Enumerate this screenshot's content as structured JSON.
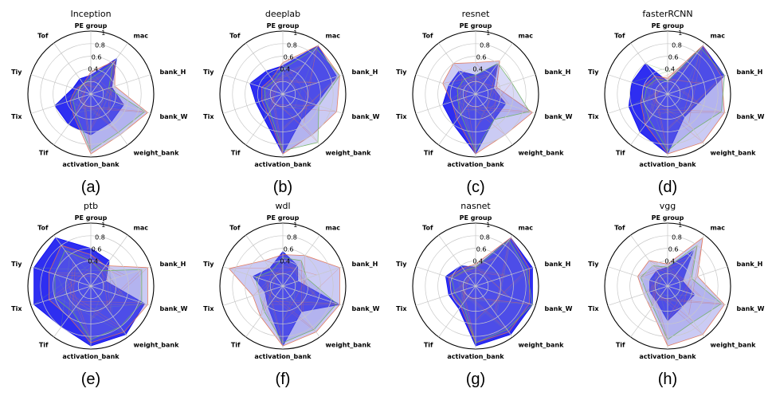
{
  "figure": {
    "axes": [
      "PE group",
      "mac",
      "bank_H",
      "bank_W",
      "weight_bank",
      "activation_bank",
      "Tif",
      "Tix",
      "Tiy",
      "Tof"
    ],
    "radial_ticks": [
      "0.4",
      "0.6",
      "0.8",
      "1"
    ],
    "colors": {
      "primary_fill": "#0000ee",
      "overlay_fill": "#6a6ae0",
      "grid": "#c8c8c8",
      "trace_red": "#e07050",
      "trace_green": "#70b060"
    }
  },
  "chart_data": [
    {
      "type": "radar",
      "title": "Inception",
      "caption": "(a)",
      "rlim": [
        0,
        1
      ],
      "series": [
        {
          "values": [
            0.3,
            0.7,
            0.35,
            0.55,
            0.55,
            0.65,
            0.6,
            0.6,
            0.3,
            0.3
          ]
        },
        {
          "values": [
            0.35,
            0.65,
            0.4,
            0.95,
            0.8,
            0.95,
            0.45,
            0.35,
            0.25,
            0.2
          ]
        },
        {
          "values": [
            0.25,
            0.6,
            0.3,
            0.9,
            0.75,
            0.9,
            0.4,
            0.3,
            0.2,
            0.2
          ]
        }
      ]
    },
    {
      "type": "radar",
      "title": "deeplab",
      "caption": "(b)",
      "rlim": [
        0,
        1
      ],
      "series": [
        {
          "values": [
            0.45,
            0.95,
            0.9,
            0.55,
            0.5,
            0.95,
            0.5,
            0.45,
            0.55,
            0.45
          ]
        },
        {
          "values": [
            0.5,
            0.95,
            0.95,
            0.9,
            0.8,
            0.95,
            0.4,
            0.35,
            0.35,
            0.3
          ]
        },
        {
          "values": [
            0.4,
            0.9,
            0.95,
            0.6,
            0.95,
            0.9,
            0.35,
            0.3,
            0.3,
            0.25
          ]
        }
      ]
    },
    {
      "type": "radar",
      "title": "resnet",
      "caption": "(c)",
      "rlim": [
        0,
        1
      ],
      "series": [
        {
          "values": [
            0.3,
            0.6,
            0.3,
            0.5,
            0.5,
            0.95,
            0.6,
            0.55,
            0.45,
            0.45
          ]
        },
        {
          "values": [
            0.5,
            0.65,
            0.35,
            0.95,
            0.8,
            0.95,
            0.5,
            0.4,
            0.55,
            0.6
          ]
        },
        {
          "values": [
            0.3,
            0.6,
            0.6,
            0.9,
            0.5,
            0.9,
            0.4,
            0.3,
            0.3,
            0.3
          ]
        }
      ]
    },
    {
      "type": "radar",
      "title": "fasterRCNN",
      "caption": "(d)",
      "rlim": [
        0,
        1
      ],
      "series": [
        {
          "values": [
            0.2,
            0.95,
            0.95,
            0.5,
            0.45,
            0.95,
            0.75,
            0.65,
            0.6,
            0.6
          ]
        },
        {
          "values": [
            0.25,
            0.95,
            0.9,
            0.95,
            0.95,
            0.95,
            0.6,
            0.45,
            0.4,
            0.35
          ]
        },
        {
          "values": [
            0.2,
            0.9,
            0.95,
            0.9,
            0.7,
            0.9,
            0.5,
            0.4,
            0.35,
            0.3
          ]
        }
      ]
    },
    {
      "type": "radar",
      "title": "ptb",
      "caption": "(e)",
      "rlim": [
        0,
        1
      ],
      "series": [
        {
          "values": [
            0.6,
            0.5,
            0.25,
            0.9,
            0.95,
            0.95,
            0.8,
            0.95,
            0.95,
            0.95
          ]
        },
        {
          "values": [
            0.5,
            0.4,
            0.95,
            0.95,
            0.9,
            0.9,
            0.6,
            0.7,
            0.7,
            0.8
          ]
        },
        {
          "values": [
            0.4,
            0.3,
            0.85,
            0.85,
            0.8,
            0.85,
            0.5,
            0.6,
            0.6,
            0.7
          ]
        }
      ]
    },
    {
      "type": "radar",
      "title": "wdl",
      "caption": "(f)",
      "rlim": [
        0,
        1
      ],
      "series": [
        {
          "values": [
            0.55,
            0.4,
            0.25,
            0.95,
            0.5,
            0.95,
            0.4,
            0.3,
            0.5,
            0.35
          ]
        },
        {
          "values": [
            0.5,
            0.6,
            0.95,
            0.95,
            0.9,
            0.95,
            0.6,
            0.5,
            0.9,
            0.5
          ]
        },
        {
          "values": [
            0.45,
            0.5,
            0.4,
            0.9,
            0.85,
            0.9,
            0.5,
            0.4,
            0.45,
            0.3
          ]
        }
      ]
    },
    {
      "type": "radar",
      "title": "nasnet",
      "caption": "(g)",
      "rlim": [
        0,
        1
      ],
      "series": [
        {
          "values": [
            0.3,
            0.95,
            0.95,
            0.95,
            0.95,
            0.95,
            0.45,
            0.45,
            0.5,
            0.4
          ]
        },
        {
          "values": [
            0.35,
            0.95,
            0.9,
            0.9,
            0.9,
            0.9,
            0.4,
            0.4,
            0.45,
            0.35
          ]
        },
        {
          "values": [
            0.3,
            0.9,
            0.85,
            0.95,
            0.85,
            0.9,
            0.35,
            0.35,
            0.4,
            0.3
          ]
        }
      ]
    },
    {
      "type": "radar",
      "title": "vgg",
      "caption": "(h)",
      "rlim": [
        0,
        1
      ],
      "series": [
        {
          "values": [
            0.3,
            0.7,
            0.25,
            0.45,
            0.4,
            0.55,
            0.3,
            0.3,
            0.3,
            0.3
          ]
        },
        {
          "values": [
            0.35,
            0.95,
            0.5,
            0.95,
            0.95,
            0.95,
            0.45,
            0.4,
            0.5,
            0.5
          ]
        },
        {
          "values": [
            0.3,
            0.8,
            0.4,
            0.9,
            0.7,
            0.85,
            0.4,
            0.35,
            0.45,
            0.4
          ]
        }
      ]
    }
  ]
}
